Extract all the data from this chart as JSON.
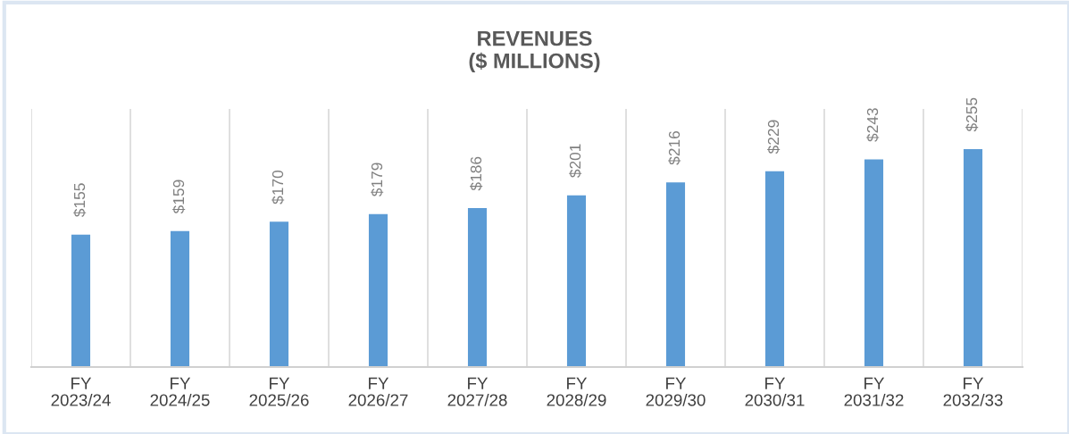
{
  "chart_data": {
    "type": "bar",
    "title": "REVENUES\n($ MILLIONS)",
    "categories": [
      "FY\n2023/24",
      "FY\n2024/25",
      "FY\n2025/26",
      "FY\n2026/27",
      "FY\n2027/28",
      "FY\n2028/29",
      "FY\n2029/30",
      "FY\n2030/31",
      "FY\n2031/32",
      "FY\n2032/33"
    ],
    "values": [
      155,
      159,
      170,
      179,
      186,
      201,
      216,
      229,
      243,
      255
    ],
    "value_labels": [
      "$155",
      "$159",
      "$170",
      "$179",
      "$186",
      "$201",
      "$216",
      "$229",
      "$243",
      "$255"
    ],
    "color": "#5b9bd5",
    "ylim": [
      0,
      302
    ],
    "tick_labels": "x",
    "grid": "x",
    "legend": false
  }
}
